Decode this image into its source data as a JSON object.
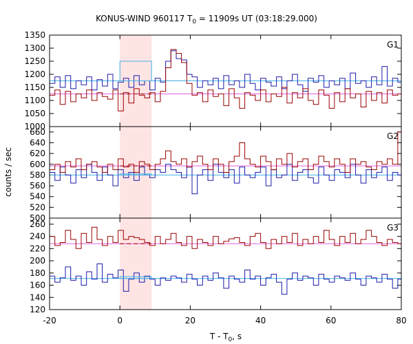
{
  "title": {
    "prefix": "KONUS-WIND 960117 T",
    "sub": "0",
    "suffix": " = 11909s UT (03:18:29.000)"
  },
  "xlabel": {
    "prefix": "T - T",
    "sub": "0",
    "suffix": ", s"
  },
  "ylabel": "counts / sec",
  "chart_data": {
    "type": "line",
    "title": "KONUS-WIND 960117 T0 = 11909s UT (03:18:29.000)",
    "xlabel": "T - T0, s",
    "ylabel": "counts / sec",
    "xlim": [
      -20,
      80
    ],
    "x_ticks": [
      "-20",
      "0",
      "20",
      "40",
      "60",
      "80"
    ],
    "shaded_interval": [
      0,
      9
    ],
    "shade_color": "#ffe4e4",
    "colors": {
      "red_series": "#990000",
      "blue_series": "#1a1aaa",
      "red_background": "#e060e0",
      "blue_background": "#40b0e8"
    },
    "bin_start": -20,
    "bin_width": 1.5,
    "panels": [
      {
        "label": "G1",
        "ylim": [
          1000,
          1350
        ],
        "y_ticks": [
          "1000",
          "1050",
          "1100",
          "1150",
          "1200",
          "1250",
          "1300",
          "1350"
        ],
        "blue_background_level": 1175,
        "red_background_level": 1125,
        "blue": [
          1165,
          1190,
          1150,
          1195,
          1145,
          1175,
          1160,
          1190,
          1140,
          1180,
          1155,
          1200,
          1145,
          1170,
          1185,
          1150,
          1195,
          1160,
          1175,
          1140,
          1185,
          1170,
          1250,
          1290,
          1260,
          1255,
          1200,
          1190,
          1150,
          1175,
          1160,
          1185,
          1145,
          1195,
          1160,
          1175,
          1150,
          1200,
          1165,
          1140,
          1185,
          1170,
          1155,
          1190,
          1145,
          1175,
          1200,
          1160,
          1135,
          1185,
          1170,
          1195,
          1150,
          1175,
          1160,
          1185,
          1145,
          1205,
          1165,
          1175,
          1150,
          1190,
          1160,
          1230,
          1155,
          1185,
          1170
        ],
        "red": [
          1120,
          1140,
          1085,
          1135,
          1095,
          1125,
          1110,
          1140,
          1100,
          1130,
          1115,
          1105,
          1140,
          1060,
          1130,
          1090,
          1145,
          1120,
          1110,
          1130,
          1095,
          1135,
          1225,
          1295,
          1280,
          1245,
          1165,
          1120,
          1130,
          1095,
          1140,
          1115,
          1125,
          1080,
          1145,
          1110,
          1070,
          1130,
          1120,
          1100,
          1140,
          1095,
          1125,
          1115,
          1150,
          1090,
          1130,
          1110,
          1145,
          1100,
          1085,
          1140,
          1120,
          1070,
          1130,
          1095,
          1145,
          1110,
          1125,
          1075,
          1135,
          1100,
          1130,
          1090,
          1140,
          1120,
          1125
        ],
        "blue_highlight": {
          "x": [
            0,
            9
          ],
          "y": [
            1175,
            1250
          ]
        },
        "red_highlight": {
          "x": [
            0,
            9
          ],
          "y": [
            1125,
            1225
          ]
        }
      },
      {
        "label": "G2",
        "ylim": [
          500,
          670
        ],
        "y_ticks": [
          "500",
          "520",
          "540",
          "560",
          "580",
          "600",
          "620",
          "640",
          "660"
        ],
        "blue_background_level": 580,
        "red_background_level": 597,
        "blue": [
          585,
          570,
          595,
          580,
          565,
          590,
          575,
          600,
          585,
          570,
          595,
          580,
          560,
          590,
          575,
          585,
          570,
          595,
          580,
          575,
          590,
          585,
          600,
          590,
          585,
          575,
          595,
          545,
          580,
          590,
          570,
          600,
          585,
          575,
          590,
          565,
          595,
          580,
          575,
          585,
          595,
          560,
          590,
          575,
          580,
          600,
          570,
          585,
          590,
          575,
          565,
          595,
          580,
          570,
          590,
          585,
          575,
          600,
          580,
          565,
          590,
          575,
          585,
          595,
          570,
          585,
          580
        ],
        "red": [
          590,
          600,
          585,
          605,
          595,
          610,
          590,
          600,
          605,
          595,
          585,
          600,
          590,
          610,
          595,
          600,
          585,
          605,
          600,
          590,
          600,
          610,
          625,
          605,
          600,
          610,
          595,
          605,
          615,
          600,
          590,
          610,
          600,
          585,
          605,
          615,
          640,
          610,
          600,
          595,
          615,
          605,
          590,
          610,
          600,
          620,
          595,
          605,
          610,
          590,
          600,
          615,
          605,
          595,
          610,
          600,
          585,
          610,
          600,
          605,
          595,
          590,
          605,
          600,
          610,
          600,
          660
        ],
        "blue_highlight": {
          "x": [
            0,
            9
          ],
          "y": [
            580,
            582
          ]
        },
        "red_highlight": {
          "x": [
            0,
            9
          ],
          "y": [
            597,
            605
          ]
        }
      },
      {
        "label": "G3",
        "ylim": [
          120,
          270
        ],
        "y_ticks": [
          "120",
          "140",
          "160",
          "180",
          "200",
          "220",
          "240",
          "260"
        ],
        "blue_background_level": 171,
        "red_background_level": 228,
        "blue": [
          175,
          165,
          172,
          190,
          168,
          175,
          160,
          182,
          170,
          195,
          165,
          178,
          172,
          185,
          150,
          170,
          180,
          165,
          175,
          170,
          160,
          172,
          168,
          175,
          172,
          165,
          178,
          170,
          160,
          175,
          168,
          180,
          172,
          155,
          175,
          170,
          165,
          185,
          170,
          175,
          160,
          172,
          178,
          165,
          145,
          170,
          180,
          168,
          175,
          172,
          160,
          178,
          170,
          165,
          175,
          172,
          168,
          180,
          170,
          160,
          175,
          172,
          165,
          178,
          170,
          155,
          170
        ],
        "red": [
          240,
          225,
          230,
          250,
          235,
          220,
          245,
          230,
          255,
          235,
          225,
          240,
          230,
          250,
          235,
          240,
          238,
          235,
          230,
          225,
          240,
          228,
          235,
          245,
          230,
          225,
          240,
          220,
          235,
          230,
          225,
          240,
          228,
          232,
          236,
          238,
          230,
          225,
          240,
          245,
          230,
          220,
          235,
          228,
          240,
          230,
          245,
          225,
          235,
          228,
          240,
          230,
          250,
          235,
          225,
          240,
          230,
          245,
          228,
          235,
          250,
          240,
          230,
          225,
          235,
          230,
          228
        ],
        "blue_highlight": {
          "x": [
            0,
            9
          ],
          "y": [
            171,
            174
          ]
        },
        "red_highlight": {
          "x": [
            0,
            9
          ],
          "y": [
            228,
            232
          ]
        }
      }
    ]
  }
}
